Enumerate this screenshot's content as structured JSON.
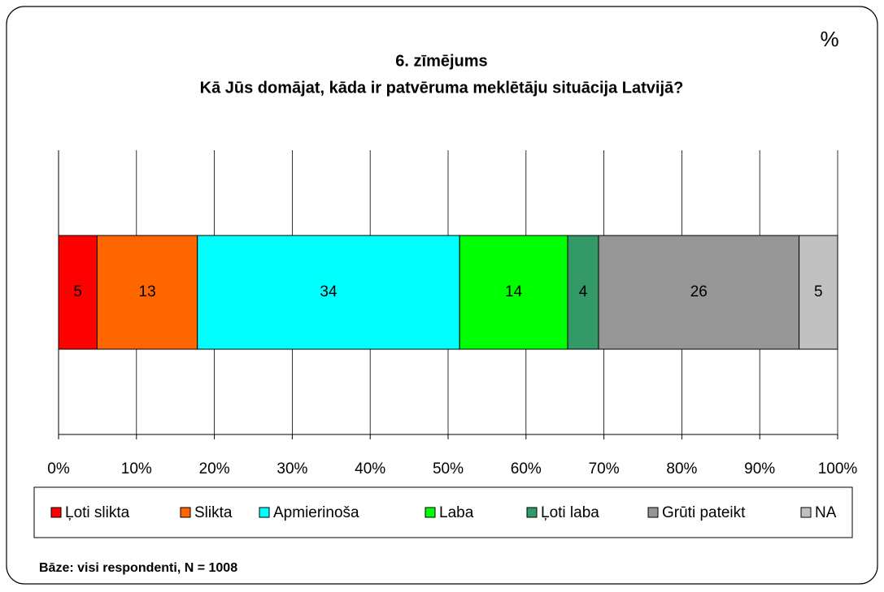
{
  "chart_data": {
    "type": "bar",
    "orientation": "horizontal",
    "stacked": "percent",
    "unit_label": "%",
    "title": "6. zīmējums",
    "subtitle": "Kā Jūs domājat, kāda ir patvēruma meklētāju situācija Latvijā?",
    "series": [
      {
        "name": "Ļoti slikta",
        "color": "#ff0000",
        "values": [
          5
        ]
      },
      {
        "name": "Slikta",
        "color": "#ff6600",
        "values": [
          13
        ]
      },
      {
        "name": "Apmierinoša",
        "color": "#00ffff",
        "values": [
          34
        ]
      },
      {
        "name": "Laba",
        "color": "#00ff00",
        "values": [
          14
        ]
      },
      {
        "name": "Ļoti laba",
        "color": "#339966",
        "values": [
          4
        ]
      },
      {
        "name": "Grūti pateikt",
        "color": "#969696",
        "values": [
          26
        ]
      },
      {
        "name": "NA",
        "color": "#c0c0c0",
        "values": [
          5
        ]
      }
    ],
    "xlim": [
      0,
      100
    ],
    "xticks": [
      {
        "value": 0,
        "label": "0%"
      },
      {
        "value": 10,
        "label": "10%"
      },
      {
        "value": 20,
        "label": "20%"
      },
      {
        "value": 30,
        "label": "30%"
      },
      {
        "value": 40,
        "label": "40%"
      },
      {
        "value": 50,
        "label": "50%"
      },
      {
        "value": 60,
        "label": "60%"
      },
      {
        "value": 70,
        "label": "70%"
      },
      {
        "value": 80,
        "label": "80%"
      },
      {
        "value": 90,
        "label": "90%"
      },
      {
        "value": 100,
        "label": "100%"
      }
    ],
    "grid": true,
    "legend": "bottom",
    "footnote": "Bāze: visi respondenti, N = 1008"
  }
}
